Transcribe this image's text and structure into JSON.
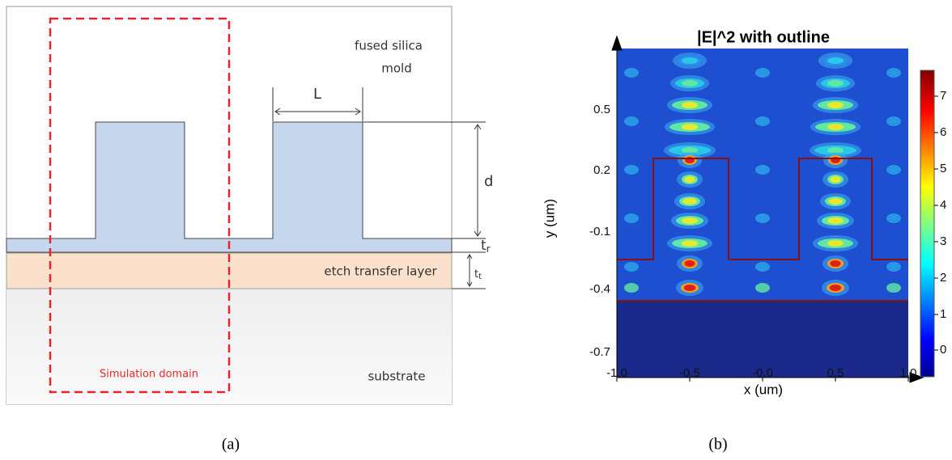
{
  "panel_a": {
    "labels": {
      "mold_line1": "fused silica",
      "mold_line2": "mold",
      "width": "L",
      "depth": "d",
      "residual": {
        "symbol": "t",
        "subscript": "r"
      },
      "transfer": {
        "symbol": "t",
        "subscript": "t"
      },
      "etch_layer": "etch transfer layer",
      "simulation": "Simulation domain",
      "substrate": "substrate"
    },
    "caption": "(a)"
  },
  "panel_b": {
    "title": "|E|^2 with outline",
    "x_axis": {
      "label": "x (um)",
      "ticks": [
        "-1.0",
        "-0.5",
        "-0.0",
        "0.5",
        "1.0"
      ]
    },
    "y_axis": {
      "label": "y (um)",
      "ticks": [
        "0.5",
        "0.2",
        "-0.1",
        "-0.4",
        "-0.7"
      ]
    },
    "colorbar": {
      "ticks": [
        "7",
        "6",
        "5",
        "4",
        "3",
        "2",
        "1",
        "0"
      ]
    },
    "caption": "(b)"
  }
}
